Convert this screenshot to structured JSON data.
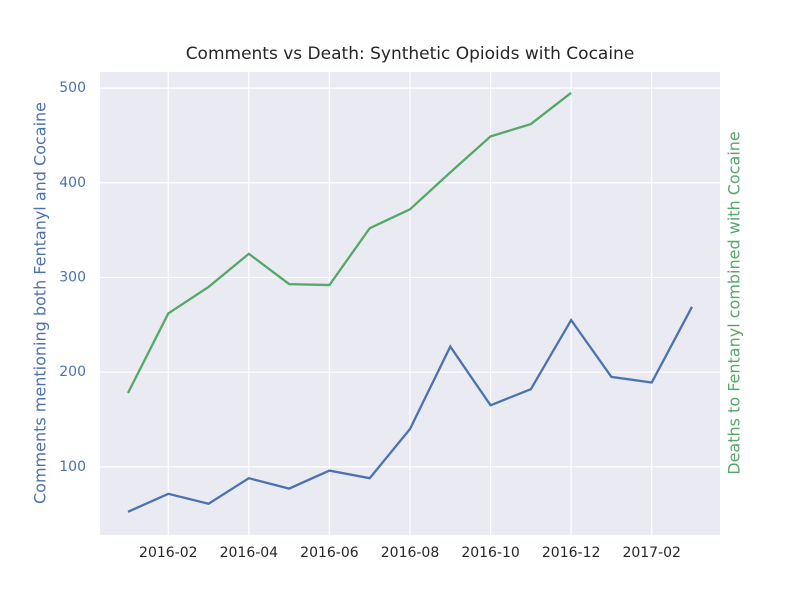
{
  "chart_data": {
    "type": "line",
    "title": "Comments vs Death: Synthetic Opioids with Cocaine",
    "ylabel": "Comments mentioning both Fentanyl and Cocaine",
    "y2label": "Deaths to Fentanyl combined with Cocaine",
    "x": [
      "2016-01",
      "2016-02",
      "2016-03",
      "2016-04",
      "2016-05",
      "2016-06",
      "2016-07",
      "2016-08",
      "2016-09",
      "2016-10",
      "2016-11",
      "2016-12",
      "2017-01",
      "2017-02",
      "2017-03"
    ],
    "xticks": [
      "2016-02",
      "2016-04",
      "2016-06",
      "2016-08",
      "2016-10",
      "2016-12",
      "2017-02"
    ],
    "ylim": [
      28,
      517
    ],
    "yticks": [
      100,
      200,
      300,
      400,
      500
    ],
    "grid": true,
    "ylabel_color": "#4c72b0",
    "y2label_color": "#55a868",
    "series": [
      {
        "color": "#4c72b0",
        "values": [
          52.5,
          71.5,
          61,
          88,
          77,
          96,
          88,
          140,
          227,
          165,
          182,
          255,
          195,
          189,
          269
        ]
      },
      {
        "color": "#55a868",
        "values": [
          178,
          262,
          290,
          325,
          293,
          292,
          352,
          372,
          411,
          449,
          462,
          495,
          null,
          null,
          null
        ]
      }
    ]
  }
}
